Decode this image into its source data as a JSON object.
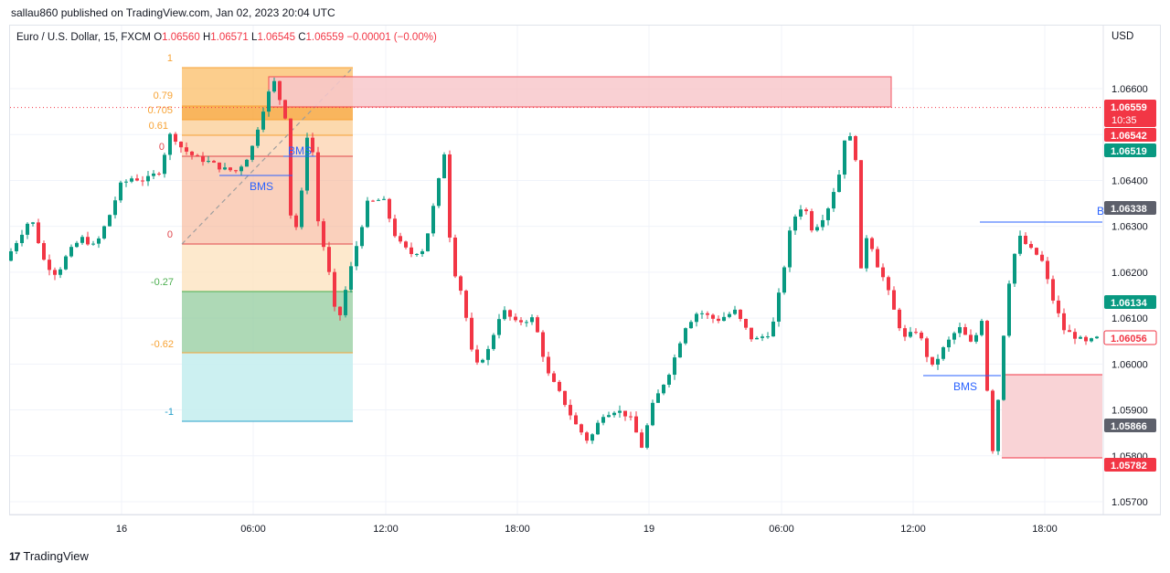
{
  "header": {
    "published": "sallau860 published on TradingView.com, Jan 02, 2023 20:04 UTC"
  },
  "legend": {
    "symbol": "Euro / U.S. Dollar, 15, FXCM",
    "o_label": "O",
    "o": "1.06560",
    "h_label": "H",
    "h": "1.06571",
    "l_label": "L",
    "l": "1.06545",
    "c_label": "C",
    "c": "1.06559",
    "change": "−0.00001 (−0.00%)"
  },
  "currency": "USD",
  "footer": {
    "logo": "17",
    "brand": "TradingView"
  },
  "colors": {
    "up": "#089981",
    "down": "#f23645",
    "zone_red": "#f23645",
    "bms": "#2962ff"
  },
  "chart_data": {
    "type": "candlestick",
    "y_ticks": [
      "1.06600",
      "1.06500",
      "1.06400",
      "1.06300",
      "1.06200",
      "1.06100",
      "1.06000",
      "1.05900",
      "1.05800",
      "1.05700"
    ],
    "x_ticks": [
      "16",
      "06:00",
      "12:00",
      "18:00",
      "19",
      "06:00",
      "12:00",
      "18:00"
    ],
    "price_labels": [
      {
        "text": "1.06559",
        "sub": "10:35",
        "style": "red"
      },
      {
        "text": "1.06542",
        "style": "red"
      },
      {
        "text": "1.06519",
        "style": "green"
      },
      {
        "text": "1.06338",
        "style": "gray"
      },
      {
        "text": "1.06134",
        "style": "green"
      },
      {
        "text": "1.06056",
        "style": "outline"
      },
      {
        "text": "1.05866",
        "style": "gray"
      },
      {
        "text": "1.05782",
        "style": "red"
      }
    ],
    "fib_levels": [
      "1",
      "0.79",
      "0.705",
      "0.61",
      "0",
      "0",
      "-0.27",
      "-0.62",
      "-1"
    ],
    "annotations": [
      "BMS",
      "BMS",
      "BMS",
      "B"
    ],
    "y_range": [
      1.0566,
      1.067
    ],
    "close_price": 1.06559
  }
}
